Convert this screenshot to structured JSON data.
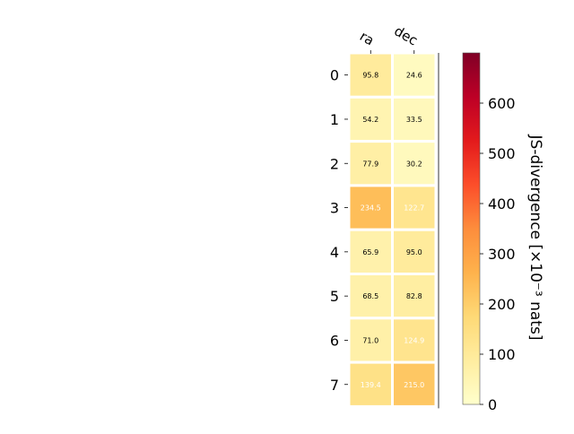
{
  "chart_data": {
    "type": "heatmap",
    "columns": [
      "ra",
      "dec"
    ],
    "rows": [
      "0",
      "1",
      "2",
      "3",
      "4",
      "5",
      "6",
      "7"
    ],
    "values": [
      [
        95.8,
        24.6
      ],
      [
        54.2,
        33.5
      ],
      [
        77.9,
        30.2
      ],
      [
        234.5,
        122.7
      ],
      [
        65.9,
        95.0
      ],
      [
        68.5,
        82.8
      ],
      [
        71.0,
        124.9
      ],
      [
        139.4,
        215.0
      ]
    ],
    "cell_labels": [
      [
        "95.8",
        "24.6"
      ],
      [
        "54.2",
        "33.5"
      ],
      [
        "77.9",
        "30.2"
      ],
      [
        "234.5",
        "122.7"
      ],
      [
        "65.9",
        "95.0"
      ],
      [
        "68.5",
        "82.8"
      ],
      [
        "71.0",
        "124.9"
      ],
      [
        "139.4",
        "215.0"
      ]
    ],
    "colormap": "YlOrRd",
    "colorbar": {
      "label": "JS-divergence [×10⁻³ nats]",
      "range": [
        0,
        700
      ],
      "ticks": [
        "0",
        "100",
        "200",
        "300",
        "400",
        "500",
        "600"
      ]
    },
    "colors": [
      "#ffffcc",
      "#ffeda0",
      "#fed976",
      "#feb24c",
      "#fd8d3c",
      "#fc4e2a",
      "#e31a1c",
      "#bd0026",
      "#800026"
    ]
  }
}
